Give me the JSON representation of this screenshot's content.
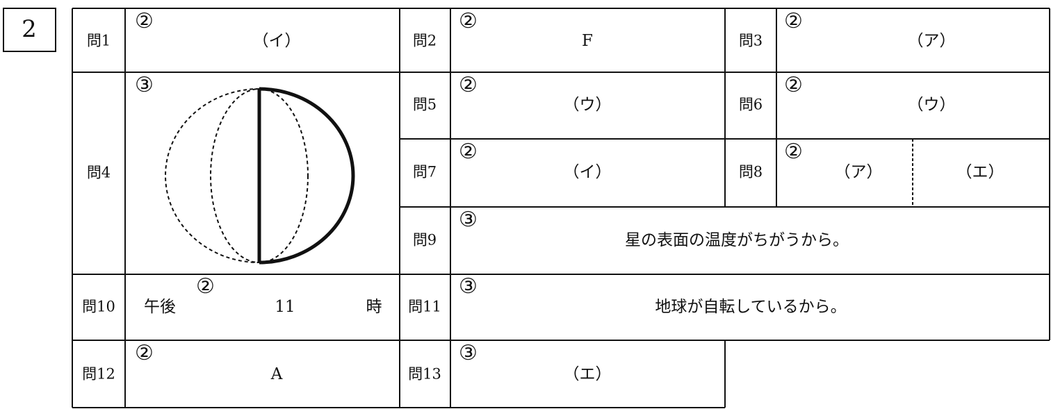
{
  "section": "2",
  "questions": [
    {
      "label": "問1",
      "points": "②",
      "answer": "（イ）"
    },
    {
      "label": "問2",
      "points": "②",
      "answer": "F"
    },
    {
      "label": "問3",
      "points": "②",
      "answer": "（ア）"
    },
    {
      "label": "問4",
      "points": "③"
    },
    {
      "label": "問5",
      "points": "②",
      "answer": "（ウ）"
    },
    {
      "label": "問6",
      "points": "②",
      "answer": "（ウ）"
    },
    {
      "label": "問7",
      "points": "②",
      "answer": "（イ）"
    },
    {
      "label": "問8",
      "points": "②",
      "answers": [
        "（ア）",
        "（エ）"
      ]
    },
    {
      "label": "問9",
      "points": "③",
      "answer": "星の表面の温度がちがうから。"
    },
    {
      "label": "問10",
      "points": "②",
      "prefix": "午後",
      "answer": "11",
      "suffix": "時"
    },
    {
      "label": "問11",
      "points": "③",
      "answer": "地球が自転しているから。"
    },
    {
      "label": "問12",
      "points": "②",
      "answer": "A"
    },
    {
      "label": "問13",
      "points": "③",
      "answer": "（エ）"
    }
  ]
}
